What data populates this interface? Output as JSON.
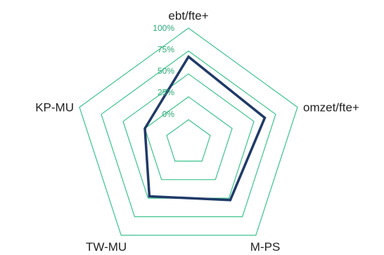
{
  "chart_data": {
    "type": "radar",
    "categories": [
      "ebt/fte+",
      "omzet/fte+",
      "M-PS",
      "TW-MU",
      "KP-MU"
    ],
    "series": [
      {
        "values": [
          0.75,
          0.7,
          0.62,
          0.58,
          0.4
        ]
      }
    ],
    "ticks": [
      "0%",
      "25%",
      "50%",
      "75%",
      "100%"
    ],
    "range": [
      0,
      1
    ],
    "grid": true,
    "legend": "none",
    "colors": {
      "grid": "#3cc48a",
      "tick_text": "#2aa876",
      "series": "#1f3a68",
      "label_text": "#222222"
    }
  }
}
